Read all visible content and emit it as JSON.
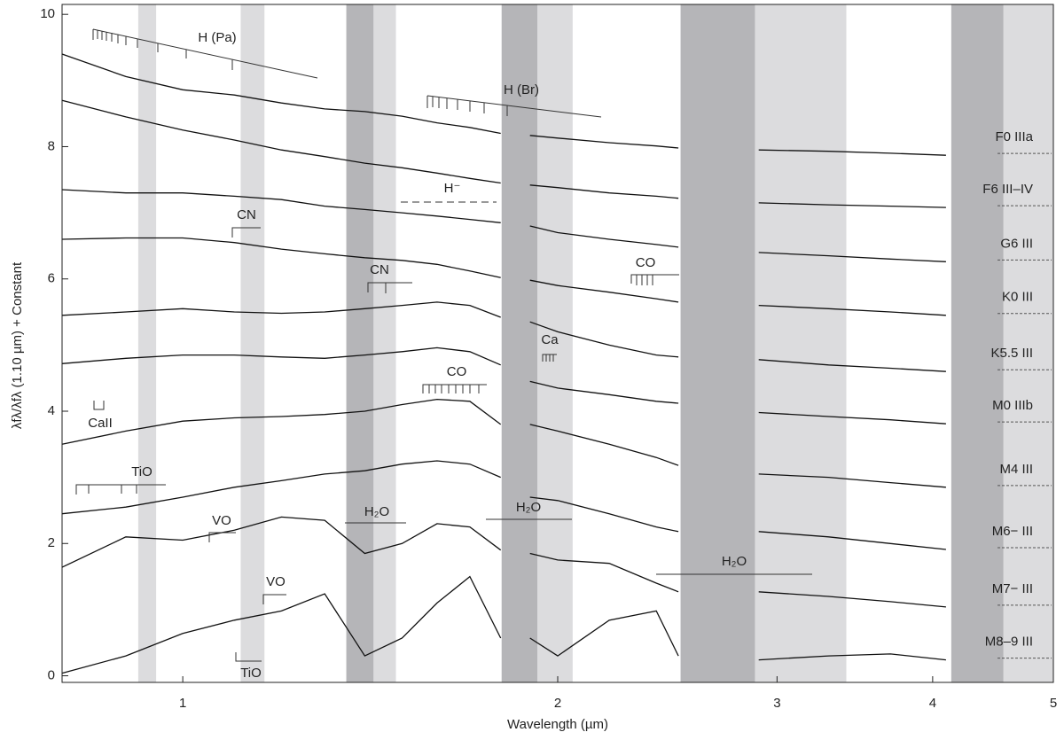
{
  "chart_data": {
    "type": "line",
    "x_label": "Wavelength (µm)",
    "y_label": "λfλ/λfλ (1.10 µm) + Constant",
    "xscale": "log",
    "xlim": [
      0.8,
      5
    ],
    "ylim": [
      -0.1,
      10.15
    ],
    "xticks": [
      1,
      2,
      3,
      4,
      5
    ],
    "yticks": [
      0,
      2,
      4,
      6,
      8,
      10
    ],
    "x": [
      0.8,
      0.9,
      1.0,
      1.1,
      1.2,
      1.3,
      1.4,
      1.5,
      1.6,
      1.7,
      1.8,
      1.85,
      1.9,
      2.0,
      2.2,
      2.4,
      2.5,
      2.7,
      2.9,
      3.3,
      3.7,
      4.1
    ],
    "series": [
      {
        "name": "F0 IIIa",
        "color": "#111111",
        "values": [
          9.4,
          9.06,
          8.86,
          8.78,
          8.66,
          8.57,
          8.53,
          8.46,
          8.36,
          8.29,
          8.2,
          null,
          8.17,
          8.13,
          8.06,
          8.01,
          7.98,
          null,
          7.95,
          7.93,
          7.9,
          7.87
        ]
      },
      {
        "name": "F6 III–IV",
        "color": "#111111",
        "values": [
          8.7,
          8.45,
          8.25,
          8.1,
          7.95,
          7.85,
          7.75,
          7.68,
          7.6,
          7.52,
          7.45,
          null,
          7.42,
          7.38,
          7.3,
          7.25,
          7.22,
          null,
          7.15,
          7.12,
          7.1,
          7.08
        ]
      },
      {
        "name": "G6 III",
        "color": "#111111",
        "values": [
          7.35,
          7.3,
          7.3,
          7.25,
          7.2,
          7.1,
          7.05,
          7.0,
          6.95,
          6.9,
          6.85,
          null,
          6.8,
          6.7,
          6.6,
          6.52,
          6.48,
          null,
          6.4,
          6.35,
          6.3,
          6.26
        ]
      },
      {
        "name": "K0 III",
        "color": "#111111",
        "values": [
          6.6,
          6.62,
          6.62,
          6.55,
          6.45,
          6.38,
          6.32,
          6.28,
          6.22,
          6.12,
          6.02,
          null,
          5.98,
          5.9,
          5.8,
          5.7,
          5.65,
          null,
          5.6,
          5.55,
          5.5,
          5.45
        ]
      },
      {
        "name": "K5.5 III",
        "color": "#111111",
        "values": [
          5.45,
          5.5,
          5.55,
          5.5,
          5.48,
          5.5,
          5.55,
          5.6,
          5.65,
          5.6,
          5.42,
          null,
          5.35,
          5.2,
          5.0,
          4.85,
          4.82,
          null,
          4.78,
          4.7,
          4.65,
          4.6
        ]
      },
      {
        "name": "M0 IIIb",
        "color": "#111111",
        "values": [
          4.72,
          4.8,
          4.85,
          4.85,
          4.82,
          4.8,
          4.85,
          4.9,
          4.96,
          4.9,
          4.7,
          null,
          4.45,
          4.35,
          4.25,
          4.15,
          4.12,
          null,
          3.98,
          3.92,
          3.87,
          3.81
        ]
      },
      {
        "name": "M4 III",
        "color": "#111111",
        "values": [
          3.5,
          3.7,
          3.85,
          3.9,
          3.92,
          3.95,
          4.0,
          4.1,
          4.18,
          4.15,
          3.8,
          null,
          3.8,
          3.7,
          3.5,
          3.3,
          3.18,
          null,
          3.05,
          3.0,
          2.92,
          2.85
        ]
      },
      {
        "name": "M6− III",
        "color": "#111111",
        "values": [
          2.45,
          2.55,
          2.7,
          2.85,
          2.95,
          3.05,
          3.1,
          3.2,
          3.25,
          3.2,
          3.0,
          null,
          2.7,
          2.65,
          2.45,
          2.25,
          2.18,
          null,
          2.18,
          2.1,
          2.0,
          1.91
        ]
      },
      {
        "name": "M7− III",
        "color": "#111111",
        "values": [
          1.64,
          2.1,
          2.05,
          2.2,
          2.4,
          2.35,
          1.85,
          2.0,
          2.3,
          2.25,
          1.9,
          null,
          1.85,
          1.75,
          1.7,
          1.4,
          1.27,
          null,
          1.27,
          1.2,
          1.12,
          1.04
        ]
      },
      {
        "name": "M8–9 III",
        "color": "#111111",
        "values": [
          0.04,
          0.3,
          0.64,
          0.84,
          0.98,
          1.24,
          0.3,
          0.57,
          1.1,
          1.5,
          0.57,
          null,
          0.57,
          0.3,
          0.84,
          0.98,
          0.3,
          null,
          0.24,
          0.3,
          0.33,
          0.24
        ]
      }
    ],
    "shaded_regions": [
      {
        "xlim": [
          0.921,
          0.952
        ],
        "color": "#dcdcde"
      },
      {
        "xlim": [
          1.113,
          1.163
        ],
        "color": "#dcdcde"
      },
      {
        "xlim": [
          1.353,
          1.423
        ],
        "color": "#b5b5b8"
      },
      {
        "xlim": [
          1.423,
          1.483
        ],
        "color": "#dcdcde"
      },
      {
        "xlim": [
          1.803,
          1.926
        ],
        "color": "#b5b5b8"
      },
      {
        "xlim": [
          1.926,
          2.056
        ],
        "color": "#dcdcde"
      },
      {
        "xlim": [
          2.51,
          2.88
        ],
        "color": "#b5b5b8"
      },
      {
        "xlim": [
          2.88,
          3.41
        ],
        "color": "#dcdcde"
      },
      {
        "xlim": [
          4.14,
          4.56
        ],
        "color": "#b5b5b8"
      },
      {
        "xlim": [
          4.56,
          5
        ],
        "color": "#dcdcde"
      }
    ],
    "annotations": [
      "H (Pa)",
      "H (Br)",
      "H⁻",
      "CN",
      "CN",
      "CO",
      "Ca",
      "CO",
      "CaII",
      "TiO",
      "VO",
      "H₂O",
      "H₂O",
      "H₂O",
      "VO",
      "TiO"
    ]
  }
}
